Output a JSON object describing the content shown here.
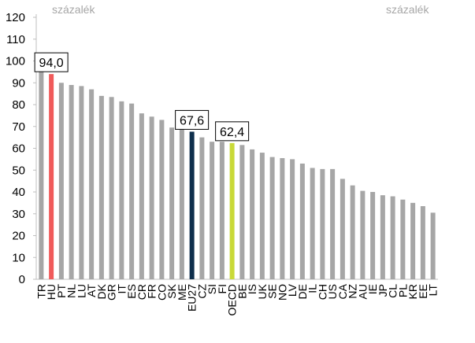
{
  "chart_data": {
    "type": "bar",
    "y_unit_left": "százalék",
    "y_unit_right": "százalék",
    "ylim": [
      0,
      120
    ],
    "yticks": [
      0,
      10,
      20,
      30,
      40,
      50,
      60,
      70,
      80,
      90,
      100,
      110,
      120
    ],
    "grid": false,
    "legend": "none",
    "categories": [
      "TR",
      "HU",
      "PT",
      "NL",
      "LU",
      "AT",
      "DK",
      "GR",
      "IT",
      "ES",
      "CR",
      "FR",
      "CO",
      "SK",
      "ME",
      "EU27",
      "CZ",
      "SI",
      "FI",
      "OECD",
      "BE",
      "IS",
      "UK",
      "SE",
      "NO",
      "LV",
      "DE",
      "IL",
      "CH",
      "US",
      "CA",
      "NZ",
      "AU",
      "IE",
      "JP",
      "CL",
      "PL",
      "KR",
      "EE",
      "LT"
    ],
    "values": [
      97.5,
      94.0,
      90.0,
      89.0,
      88.5,
      87.0,
      84.0,
      83.5,
      81.5,
      80.5,
      76.0,
      74.5,
      73.0,
      69.5,
      69.0,
      67.6,
      65.0,
      63.0,
      63.0,
      62.4,
      61.5,
      59.5,
      58.0,
      56.0,
      55.5,
      55.0,
      53.0,
      51.0,
      50.5,
      50.5,
      46.0,
      43.0,
      40.5,
      40.0,
      38.5,
      38.0,
      36.5,
      35.0,
      33.5,
      30.5
    ],
    "colors": {
      "default": "#a6a6a6",
      "HU": "#f05a5a",
      "EU27": "#0f2f4c",
      "OECD": "#c9d938"
    },
    "annotations": [
      {
        "category": "HU",
        "label": "94,0"
      },
      {
        "category": "EU27",
        "label": "67,6"
      },
      {
        "category": "OECD",
        "label": "62,4"
      }
    ]
  }
}
